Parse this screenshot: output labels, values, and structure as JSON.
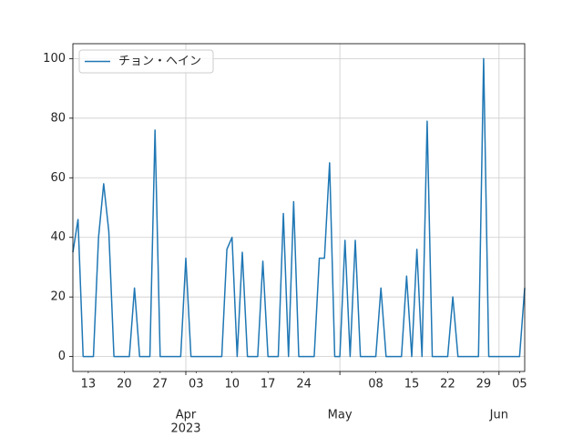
{
  "chart_data": {
    "type": "line",
    "x": [
      "2023-03-10",
      "2023-03-11",
      "2023-03-12",
      "2023-03-13",
      "2023-03-14",
      "2023-03-15",
      "2023-03-16",
      "2023-03-17",
      "2023-03-18",
      "2023-03-19",
      "2023-03-20",
      "2023-03-21",
      "2023-03-22",
      "2023-03-23",
      "2023-03-24",
      "2023-03-25",
      "2023-03-26",
      "2023-03-27",
      "2023-03-28",
      "2023-03-29",
      "2023-03-30",
      "2023-03-31",
      "2023-04-01",
      "2023-04-02",
      "2023-04-03",
      "2023-04-04",
      "2023-04-05",
      "2023-04-06",
      "2023-04-07",
      "2023-04-08",
      "2023-04-09",
      "2023-04-10",
      "2023-04-11",
      "2023-04-12",
      "2023-04-13",
      "2023-04-14",
      "2023-04-15",
      "2023-04-16",
      "2023-04-17",
      "2023-04-18",
      "2023-04-19",
      "2023-04-20",
      "2023-04-21",
      "2023-04-22",
      "2023-04-23",
      "2023-04-24",
      "2023-04-25",
      "2023-04-26",
      "2023-04-27",
      "2023-04-28",
      "2023-04-29",
      "2023-04-30",
      "2023-05-01",
      "2023-05-02",
      "2023-05-03",
      "2023-05-04",
      "2023-05-05",
      "2023-05-06",
      "2023-05-07",
      "2023-05-08",
      "2023-05-09",
      "2023-05-10",
      "2023-05-11",
      "2023-05-12",
      "2023-05-13",
      "2023-05-14",
      "2023-05-15",
      "2023-05-16",
      "2023-05-17",
      "2023-05-18",
      "2023-05-19",
      "2023-05-20",
      "2023-05-21",
      "2023-05-22",
      "2023-05-23",
      "2023-05-24",
      "2023-05-25",
      "2023-05-26",
      "2023-05-27",
      "2023-05-28",
      "2023-05-29",
      "2023-05-30",
      "2023-05-31",
      "2023-06-01",
      "2023-06-02",
      "2023-06-03",
      "2023-06-04",
      "2023-06-05",
      "2023-06-06"
    ],
    "series": [
      {
        "name": "チョン・ヘイン",
        "color": "#1f77b4",
        "values": [
          35,
          46,
          0,
          0,
          0,
          40,
          58,
          42,
          0,
          0,
          0,
          0,
          23,
          0,
          0,
          0,
          76,
          0,
          0,
          0,
          0,
          0,
          33,
          0,
          0,
          0,
          0,
          0,
          0,
          0,
          36,
          40,
          0,
          35,
          0,
          0,
          0,
          32,
          0,
          0,
          0,
          48,
          0,
          52,
          0,
          0,
          0,
          0,
          33,
          33,
          65,
          0,
          0,
          39,
          0,
          39,
          0,
          0,
          0,
          0,
          23,
          0,
          0,
          0,
          0,
          27,
          0,
          36,
          0,
          79,
          0,
          0,
          0,
          0,
          20,
          0,
          0,
          0,
          0,
          0,
          100,
          0,
          0,
          0,
          0,
          0,
          0,
          0,
          23
        ]
      }
    ],
    "xlim": [
      "2023-03-10",
      "2023-06-06"
    ],
    "ylim": [
      -5,
      105
    ],
    "yticks": [
      0,
      20,
      40,
      60,
      80,
      100
    ],
    "xticks": [
      {
        "value": "2023-03-13",
        "label": "13"
      },
      {
        "value": "2023-03-20",
        "label": "20"
      },
      {
        "value": "2023-03-27",
        "label": "27"
      },
      {
        "value": "2023-04-03",
        "label": "03"
      },
      {
        "value": "2023-04-10",
        "label": "10"
      },
      {
        "value": "2023-04-17",
        "label": "17"
      },
      {
        "value": "2023-04-24",
        "label": "24"
      },
      {
        "value": "2023-05-08",
        "label": "08"
      },
      {
        "value": "2023-05-15",
        "label": "15"
      },
      {
        "value": "2023-05-22",
        "label": "22"
      },
      {
        "value": "2023-05-29",
        "label": "29"
      },
      {
        "value": "2023-06-05",
        "label": "05"
      }
    ],
    "month_ticks": [
      {
        "value": "2023-04-01",
        "label": "Apr"
      },
      {
        "value": "2023-05-01",
        "label": "May"
      },
      {
        "value": "2023-06-01",
        "label": "Jun"
      }
    ],
    "x_offset_label": "2023",
    "grid": true,
    "legend": "upper left"
  }
}
